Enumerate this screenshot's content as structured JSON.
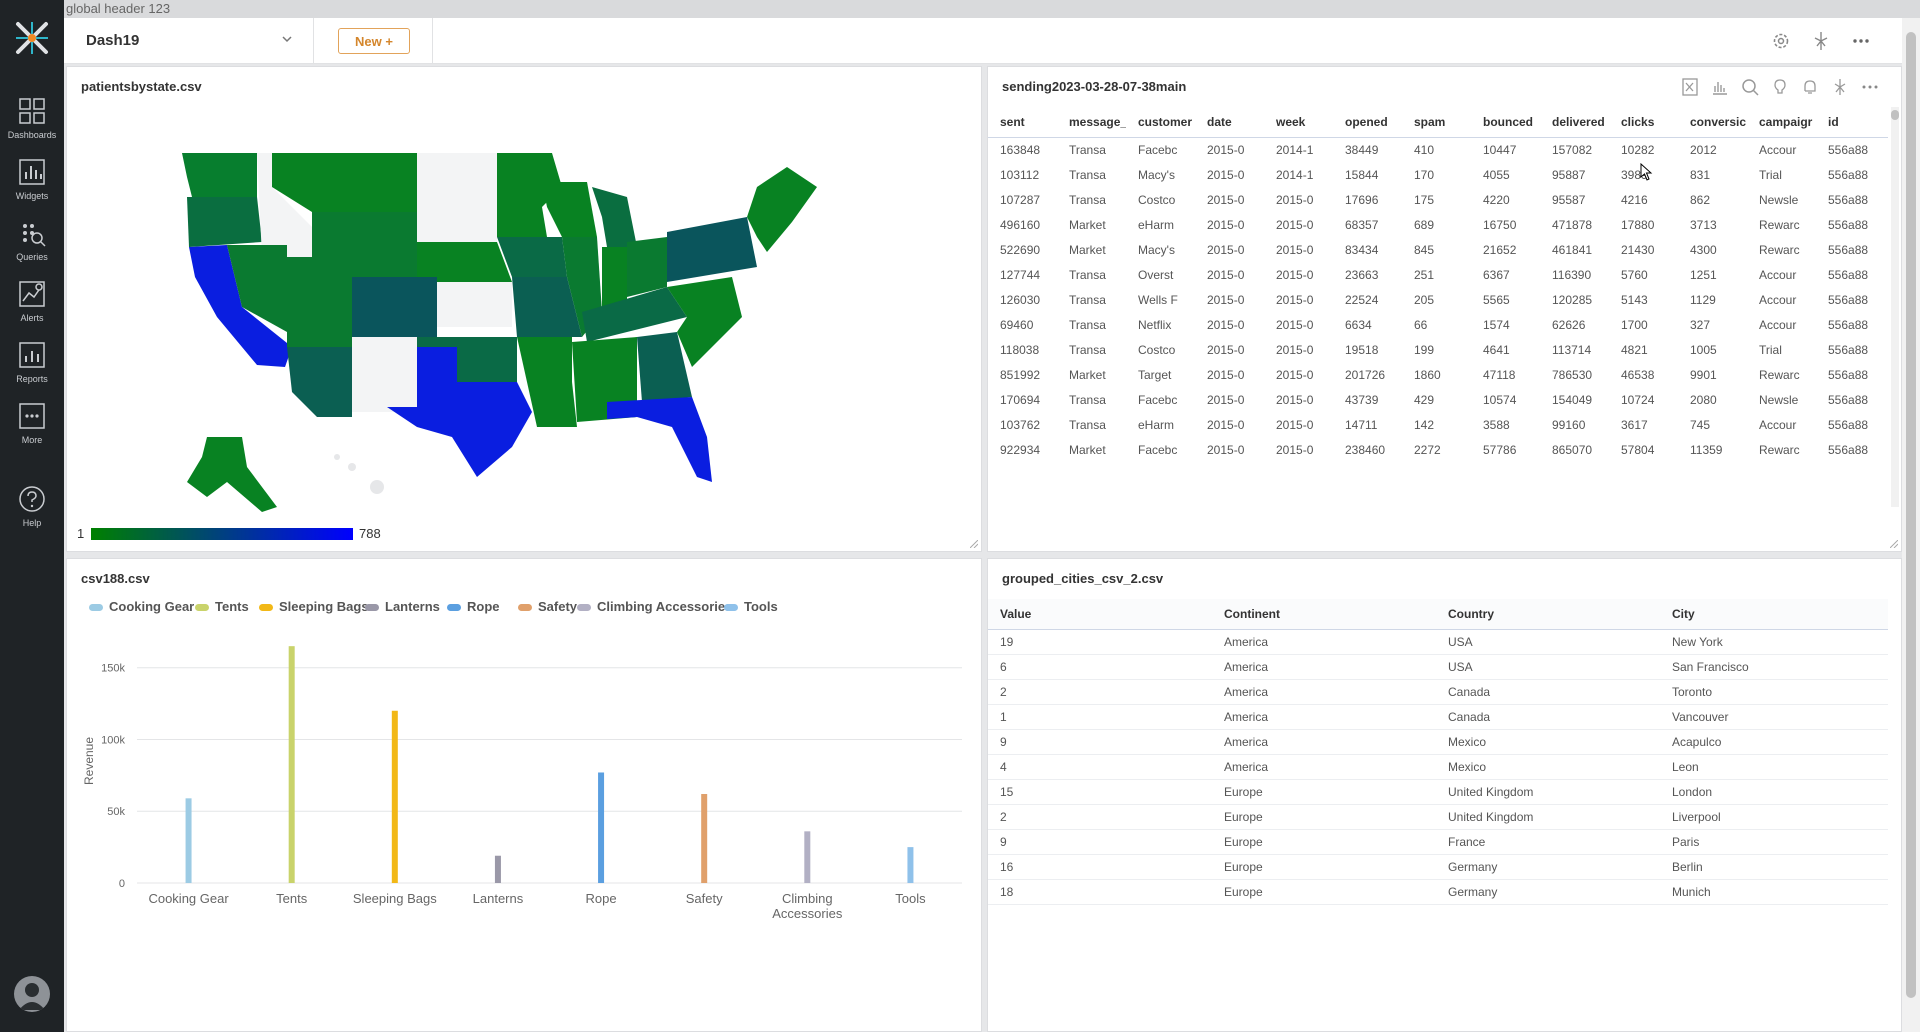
{
  "global_header": "global header 123",
  "nav": {
    "items": [
      {
        "label": "Dashboards",
        "icon": "dashboards-icon"
      },
      {
        "label": "Widgets",
        "icon": "widgets-icon"
      },
      {
        "label": "Queries",
        "icon": "queries-icon"
      },
      {
        "label": "Alerts",
        "icon": "alerts-icon"
      },
      {
        "label": "Reports",
        "icon": "reports-icon"
      },
      {
        "label": "More",
        "icon": "more-icon"
      },
      {
        "label": "Help",
        "icon": "help-icon"
      }
    ]
  },
  "toolbar": {
    "dashboard_name": "Dash19",
    "new_label": "New +"
  },
  "map_panel": {
    "title": "patientsbystate.csv",
    "legend_min": "1",
    "legend_max": "788"
  },
  "sending_panel": {
    "title": "sending2023-03-28-07-38main",
    "columns": [
      "sent",
      "message_",
      "customer",
      "date",
      "week",
      "opened",
      "spam",
      "bounced",
      "delivered",
      "clicks",
      "conversic",
      "campaigr",
      "id"
    ],
    "rows": [
      [
        "163848",
        "Transa",
        "Facebc",
        "2015-0",
        "2014-1",
        "38449",
        "410",
        "10447",
        "157082",
        "10282",
        "2012",
        "Accour",
        "556a88"
      ],
      [
        "103112",
        "Transa",
        "Macy's",
        "2015-0",
        "2014-1",
        "15844",
        "170",
        "4055",
        "95887",
        "3989",
        "831",
        "Trial",
        "556a88"
      ],
      [
        "107287",
        "Transa",
        "Costco",
        "2015-0",
        "2015-0",
        "17696",
        "175",
        "4220",
        "95587",
        "4216",
        "862",
        "Newsle",
        "556a88"
      ],
      [
        "496160",
        "Market",
        "eHarm",
        "2015-0",
        "2015-0",
        "68357",
        "689",
        "16750",
        "471878",
        "17880",
        "3713",
        "Rewarc",
        "556a88"
      ],
      [
        "522690",
        "Market",
        "Macy's",
        "2015-0",
        "2015-0",
        "83434",
        "845",
        "21652",
        "461841",
        "21430",
        "4300",
        "Rewarc",
        "556a88"
      ],
      [
        "127744",
        "Transa",
        "Overst",
        "2015-0",
        "2015-0",
        "23663",
        "251",
        "6367",
        "116390",
        "5760",
        "1251",
        "Accour",
        "556a88"
      ],
      [
        "126030",
        "Transa",
        "Wells F",
        "2015-0",
        "2015-0",
        "22524",
        "205",
        "5565",
        "120285",
        "5143",
        "1129",
        "Accour",
        "556a88"
      ],
      [
        "69460",
        "Transa",
        "Netflix",
        "2015-0",
        "2015-0",
        "6634",
        "66",
        "1574",
        "62626",
        "1700",
        "327",
        "Accour",
        "556a88"
      ],
      [
        "118038",
        "Transa",
        "Costco",
        "2015-0",
        "2015-0",
        "19518",
        "199",
        "4641",
        "113714",
        "4821",
        "1005",
        "Trial",
        "556a88"
      ],
      [
        "851992",
        "Market",
        "Target",
        "2015-0",
        "2015-0",
        "201726",
        "1860",
        "47118",
        "786530",
        "46538",
        "9901",
        "Rewarc",
        "556a88"
      ],
      [
        "170694",
        "Transa",
        "Facebc",
        "2015-0",
        "2015-0",
        "43739",
        "429",
        "10574",
        "154049",
        "10724",
        "2080",
        "Newsle",
        "556a88"
      ],
      [
        "103762",
        "Transa",
        "eHarm",
        "2015-0",
        "2015-0",
        "14711",
        "142",
        "3588",
        "99160",
        "3617",
        "745",
        "Accour",
        "556a88"
      ],
      [
        "922934",
        "Market",
        "Facebc",
        "2015-0",
        "2015-0",
        "238460",
        "2272",
        "57786",
        "865070",
        "57804",
        "11359",
        "Rewarc",
        "556a88"
      ]
    ]
  },
  "chart_panel": {
    "title": "csv188.csv"
  },
  "chart_data": {
    "type": "bar",
    "categories": [
      "Cooking Gear",
      "Tents",
      "Sleeping Bags",
      "Lanterns",
      "Rope",
      "Safety",
      "Climbing Accessories",
      "Tools"
    ],
    "category_lines": [
      [
        "Cooking Gear"
      ],
      [
        "Tents"
      ],
      [
        "Sleeping Bags"
      ],
      [
        "Lanterns"
      ],
      [
        "Rope"
      ],
      [
        "Safety"
      ],
      [
        "Climbing",
        "Accessories"
      ],
      [
        "Tools"
      ]
    ],
    "values": [
      59000,
      165000,
      120000,
      19000,
      77000,
      62000,
      36000,
      25000
    ],
    "colors": [
      "#9ccbe4",
      "#c9d36b",
      "#f2b817",
      "#9a98a8",
      "#5b9fe0",
      "#e0a06b",
      "#b2b0c4",
      "#8fc1ea"
    ],
    "ylabel": "Revenue",
    "yticks": [
      0,
      50000,
      100000,
      150000
    ],
    "ytick_labels": [
      "0",
      "50k",
      "100k",
      "150k"
    ],
    "ylim": [
      0,
      170000
    ],
    "legend": [
      "Cooking Gear",
      "Tents",
      "Sleeping Bags",
      "Lanterns",
      "Rope",
      "Safety",
      "Climbing Accessories",
      "Tools"
    ],
    "legend_placement": "top",
    "grid": true
  },
  "cities_panel": {
    "title": "grouped_cities_csv_2.csv",
    "columns": [
      "Value",
      "Continent",
      "Country",
      "City"
    ],
    "rows": [
      [
        "19",
        "America",
        "USA",
        "New York"
      ],
      [
        "6",
        "America",
        "USA",
        "San Francisco"
      ],
      [
        "2",
        "America",
        "Canada",
        "Toronto"
      ],
      [
        "1",
        "America",
        "Canada",
        "Vancouver"
      ],
      [
        "9",
        "America",
        "Mexico",
        "Acapulco"
      ],
      [
        "4",
        "America",
        "Mexico",
        "Leon"
      ],
      [
        "15",
        "Europe",
        "United Kingdom",
        "London"
      ],
      [
        "2",
        "Europe",
        "United Kingdom",
        "Liverpool"
      ],
      [
        "9",
        "Europe",
        "France",
        "Paris"
      ],
      [
        "16",
        "Europe",
        "Germany",
        "Berlin"
      ],
      [
        "18",
        "Europe",
        "Germany",
        "Munich"
      ]
    ]
  },
  "colors": {
    "accent": "#d4862c",
    "map_low": "#008000",
    "map_high": "#0000ff"
  }
}
